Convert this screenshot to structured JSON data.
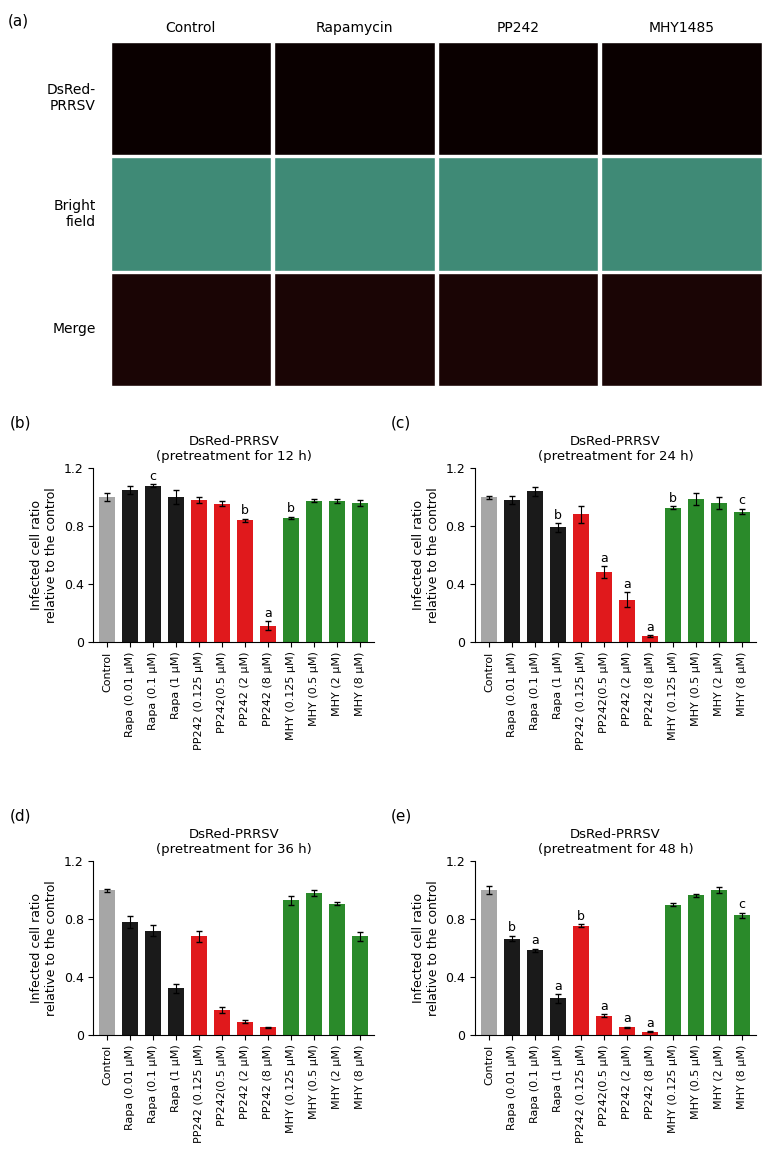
{
  "panel_a": {
    "label": "(a)",
    "columns": [
      "Control",
      "Rapamycin",
      "PP242",
      "MHY1485"
    ],
    "rows": [
      "DsRed-\nPRRSV",
      "Bright\nfield",
      "Merge"
    ]
  },
  "chart_data": [
    {
      "type": "bar",
      "label": "(b)",
      "title": "DsRed-PRRSV\n(pretreatment for 12 h)",
      "ylabel": "Infected cell ratio\nrelative to the control",
      "categories": [
        "Control",
        "Rapa (0.01 μM)",
        "Rapa (0.1 μM)",
        "Rapa (1 μM)",
        "PP242 (0.125 μM)",
        "PP242(0.5 μM)",
        "PP242 (2 μM)",
        "PP242 (8 μM)",
        "MHY (0.125 μM)",
        "MHY (0.5 μM)",
        "MHY (2 μM)",
        "MHY (8 μM)"
      ],
      "values": [
        1.0,
        1.05,
        1.08,
        1.0,
        0.98,
        0.955,
        0.84,
        0.11,
        0.855,
        0.975,
        0.975,
        0.96
      ],
      "errors": [
        0.03,
        0.03,
        0.01,
        0.05,
        0.02,
        0.015,
        0.01,
        0.03,
        0.01,
        0.01,
        0.015,
        0.02
      ],
      "annotations": [
        null,
        null,
        "c",
        null,
        null,
        null,
        "b",
        "a",
        "b",
        null,
        null,
        null
      ],
      "colors": [
        "#a6a6a6",
        "#1a1a1a",
        "#1a1a1a",
        "#1a1a1a",
        "#e0191c",
        "#e0191c",
        "#e0191c",
        "#e0191c",
        "#2a8a2a",
        "#2a8a2a",
        "#2a8a2a",
        "#2a8a2a"
      ],
      "ylim": [
        0,
        1.2
      ],
      "yticks": [
        0,
        0.4,
        0.8,
        1.2
      ]
    },
    {
      "type": "bar",
      "label": "(c)",
      "title": "DsRed-PRRSV\n(pretreatment for 24 h)",
      "ylabel": "Infected cell ratio\nrelative to the control",
      "categories": [
        "Control",
        "Rapa (0.01 μM)",
        "Rapa (0.1 μM)",
        "Rapa (1 μM)",
        "PP242 (0.125 μM)",
        "PP242(0.5 μM)",
        "PP242 (2 μM)",
        "PP242 (8 μM)",
        "MHY (0.125 μM)",
        "MHY (0.5 μM)",
        "MHY (2 μM)",
        "MHY (8 μM)"
      ],
      "values": [
        1.0,
        0.98,
        1.04,
        0.79,
        0.88,
        0.48,
        0.29,
        0.04,
        0.925,
        0.985,
        0.96,
        0.9
      ],
      "errors": [
        0.01,
        0.03,
        0.03,
        0.03,
        0.06,
        0.04,
        0.05,
        0.005,
        0.01,
        0.04,
        0.04,
        0.02
      ],
      "annotations": [
        null,
        null,
        null,
        "b",
        null,
        "a",
        "a",
        "a",
        "b",
        null,
        null,
        "c"
      ],
      "colors": [
        "#a6a6a6",
        "#1a1a1a",
        "#1a1a1a",
        "#1a1a1a",
        "#e0191c",
        "#e0191c",
        "#e0191c",
        "#e0191c",
        "#2a8a2a",
        "#2a8a2a",
        "#2a8a2a",
        "#2a8a2a"
      ],
      "ylim": [
        0,
        1.2
      ],
      "yticks": [
        0,
        0.4,
        0.8,
        1.2
      ]
    },
    {
      "type": "bar",
      "label": "(d)",
      "title": "DsRed-PRRSV\n(pretreatment for 36 h)",
      "ylabel": "Infected cell ratio\nrelative to the control",
      "categories": [
        "Control",
        "Rapa (0.01 μM)",
        "Rapa (0.1 μM)",
        "Rapa (1 μM)",
        "PP242 (0.125 μM)",
        "PP242(0.5 μM)",
        "PP242 (2 μM)",
        "PP242 (8 μM)",
        "MHY (0.125 μM)",
        "MHY (0.5 μM)",
        "MHY (2 μM)",
        "MHY (8 μM)"
      ],
      "values": [
        1.0,
        0.78,
        0.72,
        0.32,
        0.68,
        0.17,
        0.09,
        0.05,
        0.93,
        0.98,
        0.905,
        0.68
      ],
      "errors": [
        0.01,
        0.04,
        0.04,
        0.03,
        0.04,
        0.02,
        0.01,
        0.005,
        0.03,
        0.02,
        0.01,
        0.03
      ],
      "colors": [
        "#a6a6a6",
        "#1a1a1a",
        "#1a1a1a",
        "#1a1a1a",
        "#e0191c",
        "#e0191c",
        "#e0191c",
        "#e0191c",
        "#2a8a2a",
        "#2a8a2a",
        "#2a8a2a",
        "#2a8a2a"
      ],
      "ylim": [
        0,
        1.2
      ],
      "yticks": [
        0,
        0.4,
        0.8,
        1.2
      ]
    },
    {
      "type": "bar",
      "label": "(e)",
      "title": "DsRed-PRRSV\n(pretreatment for 48 h)",
      "ylabel": "Infected cell ratio\nrelative to the control",
      "categories": [
        "Control",
        "Rapa (0.01 μM)",
        "Rapa (0.1 μM)",
        "Rapa (1 μM)",
        "PP242 (0.125 μM)",
        "PP242(0.5 μM)",
        "PP242 (2 μM)",
        "PP242 (8 μM)",
        "MHY (0.125 μM)",
        "MHY (0.5 μM)",
        "MHY (2 μM)",
        "MHY (8 μM)"
      ],
      "values": [
        1.0,
        0.665,
        0.585,
        0.25,
        0.755,
        0.13,
        0.05,
        0.02,
        0.9,
        0.965,
        1.0,
        0.825
      ],
      "errors": [
        0.03,
        0.02,
        0.01,
        0.03,
        0.01,
        0.01,
        0.005,
        0.005,
        0.01,
        0.01,
        0.02,
        0.02
      ],
      "annotations": [
        null,
        "b",
        "a",
        "a",
        "b",
        "a",
        "a",
        "a",
        null,
        null,
        null,
        "c"
      ],
      "colors": [
        "#a6a6a6",
        "#1a1a1a",
        "#1a1a1a",
        "#1a1a1a",
        "#e0191c",
        "#e0191c",
        "#e0191c",
        "#e0191c",
        "#2a8a2a",
        "#2a8a2a",
        "#2a8a2a",
        "#2a8a2a"
      ],
      "ylim": [
        0,
        1.2
      ],
      "yticks": [
        0,
        0.4,
        0.8,
        1.2
      ]
    }
  ]
}
